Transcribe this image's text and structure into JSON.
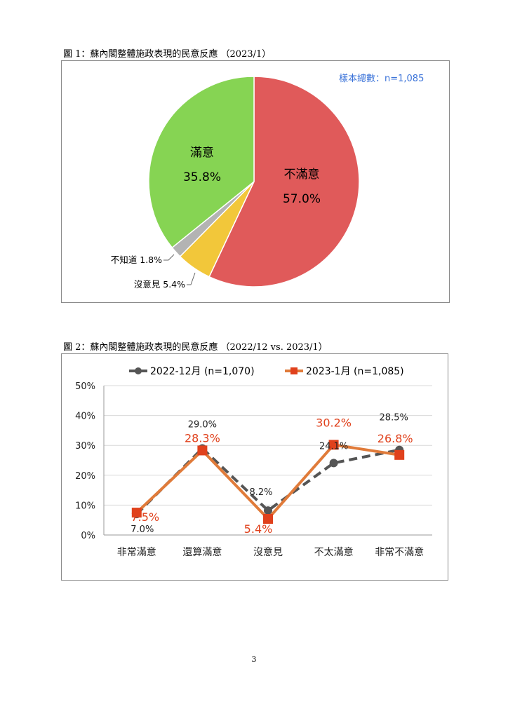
{
  "figure1": {
    "caption": "圖 1：蘇內閣整體施政表現的民意反應 （2023/1）",
    "sample_note": "樣本總數：n=1,085",
    "colors": {
      "不滿意": "#e05a5a",
      "沒意見": "#f2c73a",
      "不知道": "#b3b3b3",
      "滿意": "#86d453",
      "sample_note": "#3b73d9"
    }
  },
  "figure2": {
    "caption": "圖 2：蘇內閣整體施政表現的民意反應 （2022/12 vs. 2023/1）",
    "colors": {
      "2022-12月": "#555555",
      "2023-1月": "#e07b3a",
      "marker_2023": "#e0411c",
      "label_2023": "#e0411c"
    }
  },
  "chart_data": [
    {
      "type": "pie",
      "title": "",
      "slices": [
        {
          "label": "不滿意",
          "value": 57.0,
          "display": "57.0%"
        },
        {
          "label": "沒意見",
          "value": 5.4,
          "display": "沒意見 5.4%"
        },
        {
          "label": "不知道",
          "value": 1.8,
          "display": "不知道 1.8%"
        },
        {
          "label": "滿意",
          "value": 35.8,
          "display": "35.8%"
        }
      ]
    },
    {
      "type": "line",
      "categories": [
        "非常滿意",
        "還算滿意",
        "沒意見",
        "不太滿意",
        "非常不滿意"
      ],
      "ylim": [
        0,
        50
      ],
      "yticks": [
        "0%",
        "10%",
        "20%",
        "30%",
        "40%",
        "50%"
      ],
      "grid": true,
      "legend_position": "top",
      "series": [
        {
          "name": "2022-12月 (n=1,070)",
          "values": [
            7.0,
            29.0,
            8.2,
            24.1,
            28.5
          ],
          "labels": [
            "7.0%",
            "29.0%",
            "8.2%",
            "24.1%",
            "28.5%"
          ]
        },
        {
          "name": "2023-1月 (n=1,085)",
          "values": [
            7.5,
            28.3,
            5.4,
            30.2,
            26.8
          ],
          "labels": [
            "7.5%",
            "28.3%",
            "5.4%",
            "30.2%",
            "26.8%"
          ]
        }
      ]
    }
  ],
  "page_number": "3"
}
